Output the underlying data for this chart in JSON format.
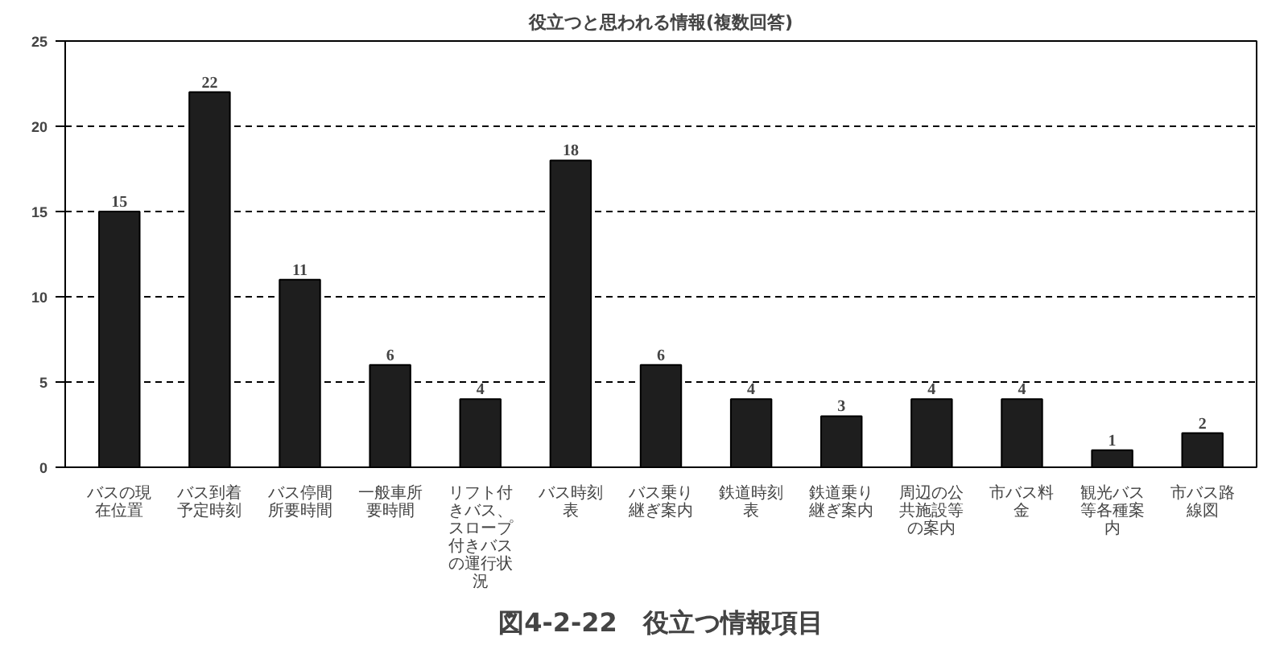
{
  "chart_data": {
    "type": "bar",
    "title": "役立つと思われる情報(複数回答)",
    "categories": [
      "バスの現在位置",
      "バス到着予定時刻",
      "バス停間所要時間",
      "一般車所要時間",
      "リフト付きバス、スロープ付きバスの運行状況",
      "バス時刻表",
      "バス乗り継ぎ案内",
      "鉄道時刻表",
      "鉄道乗り継ぎ案内",
      "周辺の公共施設等の案内",
      "市バス料金",
      "観光バス等各種案内",
      "市バス路線図"
    ],
    "values": [
      15,
      22,
      11,
      6,
      4,
      18,
      6,
      4,
      3,
      4,
      4,
      1,
      2
    ],
    "color": "#1e1e1e",
    "ylim": [
      0,
      25
    ],
    "yticks": [
      0,
      5,
      10,
      15,
      20,
      25
    ],
    "grid": "y",
    "data_labels": true,
    "annotations": [
      "図4-2-22　役立つ情報項目"
    ]
  }
}
